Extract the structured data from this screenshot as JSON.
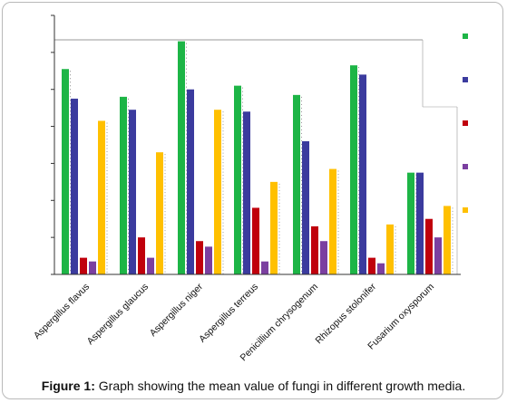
{
  "caption": {
    "label": "Figure 1:",
    "text": "Graph showing the mean value of fungi in different growth media."
  },
  "chart_data": {
    "type": "bar",
    "title": "",
    "xlabel": "",
    "ylabel": "",
    "ylim": [
      0,
      7
    ],
    "grid": false,
    "legend": "right",
    "categories": [
      "Aspergillus flavus",
      "Aspergillus glaucus",
      "Aspergillus niger",
      "Aspergillus terreus",
      "Penicillium chrysogenum",
      "Rhizopus stolonifer",
      "Fusarium oxysporum"
    ],
    "series": [
      {
        "color": "#1db546",
        "values": [
          5.55,
          4.8,
          6.3,
          5.1,
          4.85,
          5.65,
          2.75
        ]
      },
      {
        "color": "#3b3b9e",
        "values": [
          4.75,
          4.45,
          5.0,
          4.4,
          3.6,
          5.4,
          2.75
        ]
      },
      {
        "color": "#c0000c",
        "values": [
          0.45,
          1.0,
          0.9,
          1.8,
          1.3,
          0.45,
          1.5
        ]
      },
      {
        "color": "#7b3fa0",
        "values": [
          0.35,
          0.45,
          0.75,
          0.35,
          0.9,
          0.3,
          1.0
        ]
      },
      {
        "color": "#ffc000",
        "values": [
          4.15,
          3.3,
          4.45,
          2.5,
          2.85,
          1.35,
          1.85
        ]
      }
    ]
  }
}
